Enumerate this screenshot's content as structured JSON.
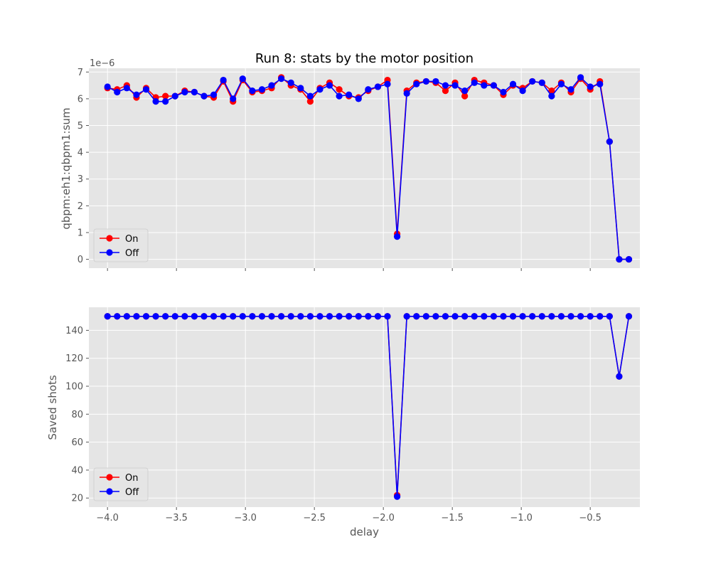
{
  "chart_data": [
    {
      "type": "line",
      "title": "Run 8: stats by the motor position",
      "xlabel": "",
      "ylabel": "qbpm:eh1:qbpm1:sum",
      "offset_text": "1e−6",
      "ylim": [
        -0.33,
        7.14
      ],
      "yticks": [
        0,
        1,
        2,
        3,
        4,
        5,
        6,
        7
      ],
      "xlim": [
        -4.135,
        -0.14
      ],
      "grid": true,
      "legend": "lower-left",
      "x": [
        -4.0,
        -3.93,
        -3.86,
        -3.79,
        -3.72,
        -3.65,
        -3.58,
        -3.51,
        -3.44,
        -3.37,
        -3.3,
        -3.23,
        -3.16,
        -3.09,
        -3.02,
        -2.95,
        -2.88,
        -2.81,
        -2.74,
        -2.67,
        -2.6,
        -2.53,
        -2.46,
        -2.39,
        -2.32,
        -2.25,
        -2.18,
        -2.11,
        -2.04,
        -1.97,
        -1.9,
        -1.83,
        -1.76,
        -1.69,
        -1.62,
        -1.55,
        -1.48,
        -1.41,
        -1.34,
        -1.27,
        -1.2,
        -1.13,
        -1.06,
        -0.99,
        -0.92,
        -0.85,
        -0.78,
        -0.71,
        -0.64,
        -0.57,
        -0.5,
        -0.43,
        -0.36,
        -0.29,
        -0.22
      ],
      "series": [
        {
          "name": "On",
          "color": "#ff0000",
          "values": [
            6.4,
            6.35,
            6.5,
            6.05,
            6.4,
            6.05,
            6.1,
            6.1,
            6.3,
            6.25,
            6.1,
            6.05,
            6.65,
            5.9,
            6.7,
            6.25,
            6.3,
            6.4,
            6.8,
            6.5,
            6.35,
            5.9,
            6.4,
            6.6,
            6.35,
            6.1,
            6.05,
            6.3,
            6.45,
            6.7,
            0.95,
            6.3,
            6.6,
            6.65,
            6.6,
            6.3,
            6.6,
            6.1,
            6.7,
            6.6,
            6.5,
            6.15,
            6.5,
            6.4,
            6.65,
            6.6,
            6.3,
            6.6,
            6.25,
            6.75,
            6.35,
            6.65,
            4.4,
            0.0,
            0.0
          ]
        },
        {
          "name": "Off",
          "color": "#0000ff",
          "values": [
            6.45,
            6.25,
            6.4,
            6.15,
            6.35,
            5.9,
            5.9,
            6.1,
            6.25,
            6.25,
            6.1,
            6.15,
            6.7,
            6.0,
            6.75,
            6.3,
            6.35,
            6.5,
            6.75,
            6.6,
            6.4,
            6.1,
            6.35,
            6.5,
            6.1,
            6.15,
            6.0,
            6.35,
            6.45,
            6.55,
            0.85,
            6.2,
            6.55,
            6.65,
            6.65,
            6.5,
            6.5,
            6.3,
            6.6,
            6.5,
            6.5,
            6.25,
            6.55,
            6.3,
            6.65,
            6.6,
            6.1,
            6.55,
            6.35,
            6.8,
            6.45,
            6.55,
            4.4,
            0.0,
            0.0
          ]
        }
      ]
    },
    {
      "type": "line",
      "title": "",
      "xlabel": "delay",
      "ylabel": "Saved shots",
      "ylim": [
        13.5,
        156.5
      ],
      "yticks": [
        20,
        40,
        60,
        80,
        100,
        120,
        140
      ],
      "xlim": [
        -4.135,
        -0.14
      ],
      "xticks": [
        -4.0,
        -3.5,
        -3.0,
        -2.5,
        -2.0,
        -1.5,
        -1.0,
        -0.5
      ],
      "xticklabels": [
        "−4.0",
        "−3.5",
        "−3.0",
        "−2.5",
        "−2.0",
        "−1.5",
        "−1.0",
        "−0.5"
      ],
      "grid": true,
      "legend": "lower-left",
      "x": [
        -4.0,
        -3.93,
        -3.86,
        -3.79,
        -3.72,
        -3.65,
        -3.58,
        -3.51,
        -3.44,
        -3.37,
        -3.3,
        -3.23,
        -3.16,
        -3.09,
        -3.02,
        -2.95,
        -2.88,
        -2.81,
        -2.74,
        -2.67,
        -2.6,
        -2.53,
        -2.46,
        -2.39,
        -2.32,
        -2.25,
        -2.18,
        -2.11,
        -2.04,
        -1.97,
        -1.9,
        -1.83,
        -1.76,
        -1.69,
        -1.62,
        -1.55,
        -1.48,
        -1.41,
        -1.34,
        -1.27,
        -1.2,
        -1.13,
        -1.06,
        -0.99,
        -0.92,
        -0.85,
        -0.78,
        -0.71,
        -0.64,
        -0.57,
        -0.5,
        -0.43,
        -0.36,
        -0.29,
        -0.22
      ],
      "series": [
        {
          "name": "On",
          "color": "#ff0000",
          "values": [
            150,
            150,
            150,
            150,
            150,
            150,
            150,
            150,
            150,
            150,
            150,
            150,
            150,
            150,
            150,
            150,
            150,
            150,
            150,
            150,
            150,
            150,
            150,
            150,
            150,
            150,
            150,
            150,
            150,
            150,
            22,
            150,
            150,
            150,
            150,
            150,
            150,
            150,
            150,
            150,
            150,
            150,
            150,
            150,
            150,
            150,
            150,
            150,
            150,
            150,
            150,
            150,
            150,
            107,
            150
          ]
        },
        {
          "name": "Off",
          "color": "#0000ff",
          "values": [
            150,
            150,
            150,
            150,
            150,
            150,
            150,
            150,
            150,
            150,
            150,
            150,
            150,
            150,
            150,
            150,
            150,
            150,
            150,
            150,
            150,
            150,
            150,
            150,
            150,
            150,
            150,
            150,
            150,
            150,
            21,
            150,
            150,
            150,
            150,
            150,
            150,
            150,
            150,
            150,
            150,
            150,
            150,
            150,
            150,
            150,
            150,
            150,
            150,
            150,
            150,
            150,
            150,
            107,
            150
          ]
        }
      ]
    }
  ]
}
